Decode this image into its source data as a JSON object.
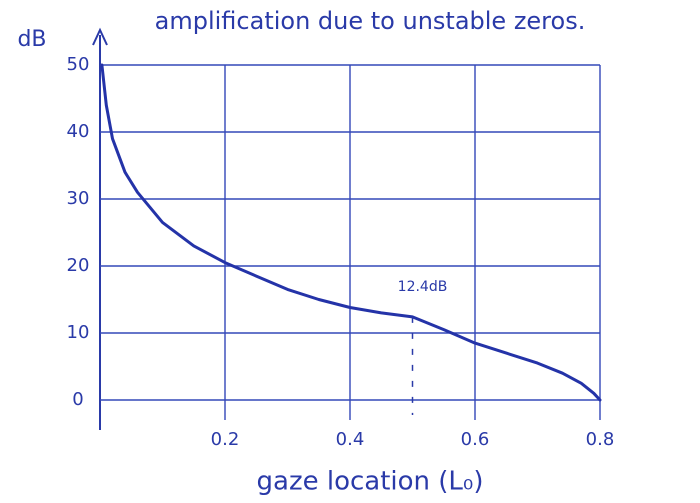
{
  "chart_data": {
    "type": "line",
    "title": "amplification due to unstable zeros.",
    "y_label": "dB",
    "x_label": "gaze location (L₀)",
    "x": [
      0.003,
      0.01,
      0.02,
      0.04,
      0.06,
      0.1,
      0.15,
      0.2,
      0.25,
      0.3,
      0.35,
      0.4,
      0.45,
      0.5,
      0.55,
      0.6,
      0.65,
      0.7,
      0.74,
      0.77,
      0.79,
      0.8
    ],
    "series": [
      {
        "color": "#2433a8",
        "values": [
          50,
          44,
          39,
          34,
          31,
          26.5,
          23,
          20.5,
          18.5,
          16.5,
          15,
          13.8,
          13,
          12.4,
          10.5,
          8.5,
          7,
          5.5,
          4,
          2.5,
          1,
          0
        ]
      }
    ],
    "xlim": [
      0,
      0.8
    ],
    "ylim": [
      0,
      50
    ],
    "xticks": [
      0.2,
      0.4,
      0.6,
      0.8
    ],
    "yticks": [
      0,
      10,
      20,
      30,
      40,
      50
    ],
    "grid": true,
    "annotation": {
      "text": "12.4dB",
      "x": 0.5,
      "y": 12.4
    }
  }
}
